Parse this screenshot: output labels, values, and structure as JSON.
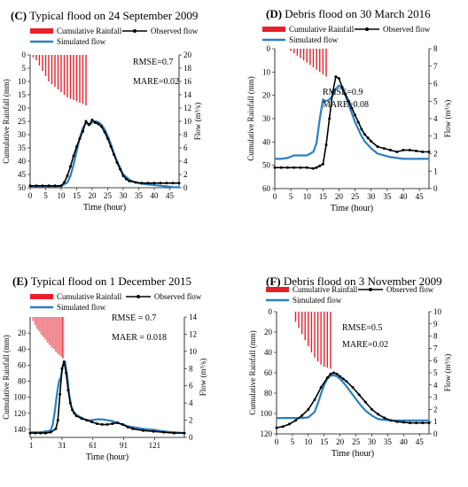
{
  "colors": {
    "rain": "#e8202a",
    "observed": "#000000",
    "simulated": "#2a7fc4"
  },
  "chart_data": [
    {
      "id": "C",
      "type": "line",
      "letter": "(C)",
      "title": "Typical flood on 24 September 2009",
      "xlabel": "Time (hour)",
      "ylabel_left": "Cumulative Rainfall (mm)",
      "ylabel_right": "Flow (m³/s)",
      "xlim": [
        0,
        48
      ],
      "x_ticks": [
        0,
        5,
        10,
        15,
        20,
        25,
        30,
        35,
        40,
        45
      ],
      "y_left_lim": [
        0,
        50
      ],
      "y_left_ticks": [
        0,
        5,
        10,
        15,
        20,
        25,
        30,
        35,
        40,
        45,
        50
      ],
      "y_right_lim": [
        0,
        20
      ],
      "y_right_ticks": [
        0,
        2,
        4,
        6,
        8,
        10,
        12,
        14,
        16,
        18,
        20
      ],
      "legend": {
        "rain": "Cumulative Rainfall",
        "observed": "Observed flow",
        "simulated": "Simulated flow"
      },
      "stats": [
        "RMSE=0.7",
        "MARE=0.02"
      ],
      "rainfall": {
        "x": [
          1,
          2,
          3,
          4,
          5,
          6,
          7,
          8,
          9,
          10,
          11,
          12,
          13,
          14,
          15,
          16,
          17,
          18
        ],
        "values": [
          1,
          2,
          4,
          6,
          8,
          10,
          11,
          12,
          13,
          14,
          15,
          16,
          16.5,
          17,
          17.5,
          18,
          18.5,
          19
        ]
      },
      "observed": {
        "x": [
          0,
          2,
          4,
          6,
          8,
          10,
          11,
          12,
          13,
          14,
          15,
          16,
          17,
          18,
          19,
          20,
          21,
          22,
          23,
          24,
          25,
          26,
          27,
          28,
          29,
          30,
          31,
          32,
          34,
          36,
          38,
          40,
          42,
          44,
          46,
          48
        ],
        "y": [
          0.3,
          0.3,
          0.3,
          0.3,
          0.3,
          0.3,
          0.8,
          1.8,
          3.2,
          4.8,
          6.2,
          7.4,
          8.5,
          10.0,
          9.5,
          10.2,
          9.8,
          9.6,
          9.2,
          8.4,
          7.4,
          6.2,
          5.0,
          3.8,
          2.8,
          1.8,
          1.3,
          1.0,
          0.8,
          0.7,
          0.7,
          0.7,
          0.7,
          0.7,
          0.7,
          0.7
        ]
      },
      "simulated": {
        "x": [
          0,
          2,
          4,
          6,
          8,
          10,
          12,
          13,
          14,
          15,
          16,
          17,
          18,
          19,
          20,
          21,
          22,
          23,
          24,
          25,
          26,
          27,
          28,
          29,
          30,
          32,
          34,
          36,
          38,
          40,
          42,
          44,
          46,
          48
        ],
        "y": [
          0.2,
          0.2,
          0.2,
          0.2,
          0.2,
          0.25,
          0.8,
          1.8,
          3.5,
          5.5,
          7.5,
          9.0,
          9.8,
          9.4,
          9.8,
          10.0,
          9.9,
          9.5,
          8.8,
          7.8,
          6.6,
          5.2,
          4.0,
          3.0,
          2.0,
          1.2,
          0.8,
          0.6,
          0.5,
          0.4,
          0.3,
          0.2,
          0.1,
          0.05
        ]
      }
    },
    {
      "id": "D",
      "type": "line",
      "letter": "(D)",
      "title": "Debris flood on 30 March 2016",
      "xlabel": "Time (hour)",
      "ylabel_left": "Cumulative Rainfall (mm)",
      "ylabel_right": "Flow (m³/s)",
      "xlim": [
        0,
        48
      ],
      "x_ticks": [
        0,
        5,
        10,
        15,
        20,
        25,
        30,
        35,
        40,
        45
      ],
      "y_left_lim": [
        0,
        60
      ],
      "y_left_ticks": [
        0,
        10,
        20,
        30,
        40,
        50,
        60
      ],
      "y_right_lim": [
        0,
        8
      ],
      "y_right_ticks": [
        0,
        1,
        2,
        3,
        4,
        5,
        6,
        7,
        8
      ],
      "legend": {
        "rain": "Cumulative Rainfall",
        "observed": "Observed flow",
        "simulated": "Simulated flow"
      },
      "stats": [
        "RMSE=0.9",
        "MARE=0.08"
      ],
      "rainfall": {
        "x": [
          5,
          6,
          7,
          8,
          9,
          10,
          11,
          12,
          13,
          14,
          15,
          16
        ],
        "values": [
          1,
          2,
          3,
          4,
          5,
          6,
          7,
          8,
          9,
          10,
          11,
          12
        ]
      },
      "observed": {
        "x": [
          0,
          2,
          4,
          6,
          8,
          10,
          12,
          13,
          14,
          15,
          16,
          17,
          18,
          19,
          20,
          21,
          22,
          23,
          24,
          25,
          26,
          27,
          28,
          29,
          30,
          32,
          34,
          36,
          38,
          40,
          42,
          44,
          46,
          48
        ],
        "y": [
          1.2,
          1.2,
          1.2,
          1.2,
          1.2,
          1.2,
          1.15,
          1.2,
          1.3,
          1.4,
          2.5,
          4.0,
          5.5,
          6.4,
          6.3,
          5.8,
          5.4,
          5.0,
          4.6,
          4.2,
          3.8,
          3.4,
          3.1,
          2.9,
          2.7,
          2.4,
          2.3,
          2.2,
          2.1,
          2.2,
          2.2,
          2.15,
          2.1,
          2.1
        ]
      },
      "simulated": {
        "x": [
          0,
          2,
          4,
          6,
          8,
          10,
          12,
          13,
          14,
          15,
          16,
          17,
          18,
          19,
          20,
          21,
          22,
          23,
          24,
          25,
          26,
          27,
          28,
          29,
          30,
          32,
          34,
          36,
          38,
          40,
          42,
          44,
          46,
          48
        ],
        "y": [
          1.7,
          1.7,
          1.75,
          1.9,
          1.9,
          1.9,
          2.1,
          2.6,
          4.0,
          5.1,
          5.0,
          5.1,
          5.3,
          5.7,
          5.9,
          5.7,
          5.3,
          4.8,
          4.3,
          3.8,
          3.4,
          3.0,
          2.7,
          2.5,
          2.3,
          2.0,
          1.9,
          1.8,
          1.75,
          1.7,
          1.7,
          1.7,
          1.7,
          1.7
        ]
      }
    },
    {
      "id": "E",
      "type": "line",
      "letter": "(E)",
      "title": "Typical flood on 1 December 2015",
      "xlabel": "Time (hour)",
      "ylabel_left": "Cumulative Rainfall (mm)",
      "ylabel_right": "Flow (m³/s)",
      "xlim": [
        0,
        150
      ],
      "x_ticks": [
        1,
        31,
        61,
        91,
        121
      ],
      "y_left_lim": [
        0,
        150
      ],
      "y_left_ticks": [
        20,
        40,
        60,
        80,
        100,
        120,
        140
      ],
      "y_right_lim": [
        0,
        14
      ],
      "y_right_ticks": [
        0,
        2,
        4,
        6,
        8,
        10,
        12,
        14
      ],
      "legend": {
        "rain": "Cumulative Rainfall",
        "observed": "Observed flow",
        "simulated": "Simulated flow"
      },
      "stats": [
        "RMSE = 0.7",
        "MAER = 0.018"
      ],
      "rainfall": {
        "x": [
          3,
          5,
          7,
          9,
          11,
          13,
          15,
          17,
          19,
          21,
          23,
          25,
          27,
          29,
          31,
          32
        ],
        "values": [
          5,
          10,
          15,
          18,
          22,
          25,
          28,
          32,
          35,
          38,
          40,
          43,
          46,
          48,
          50,
          52
        ]
      },
      "observed": {
        "x": [
          0,
          5,
          10,
          15,
          20,
          25,
          27,
          29,
          31,
          33,
          35,
          37,
          39,
          41,
          43,
          45,
          50,
          55,
          60,
          65,
          70,
          75,
          80,
          85,
          90,
          95,
          100,
          110,
          120,
          130,
          140,
          150
        ],
        "y": [
          0.5,
          0.5,
          0.5,
          0.5,
          0.6,
          1.0,
          2.0,
          5.0,
          8.0,
          8.8,
          7.5,
          5.5,
          4.0,
          3.2,
          2.8,
          2.5,
          2.2,
          2.0,
          1.8,
          1.6,
          1.5,
          1.5,
          1.6,
          1.7,
          1.5,
          1.2,
          1.0,
          0.8,
          0.7,
          0.6,
          0.5,
          0.5
        ]
      },
      "simulated": {
        "x": [
          0,
          5,
          10,
          15,
          20,
          22,
          24,
          26,
          28,
          30,
          32,
          34,
          36,
          38,
          40,
          42,
          45,
          50,
          55,
          60,
          65,
          70,
          75,
          80,
          85,
          90,
          95,
          100,
          110,
          120,
          130,
          140,
          150
        ],
        "y": [
          0.6,
          0.6,
          0.6,
          0.7,
          0.8,
          1.5,
          3.0,
          5.0,
          6.5,
          7.0,
          8.5,
          8.8,
          7.2,
          5.0,
          3.6,
          3.0,
          2.6,
          2.3,
          2.0,
          2.0,
          2.1,
          2.1,
          2.0,
          1.9,
          1.7,
          1.5,
          1.3,
          1.2,
          1.0,
          0.9,
          0.7,
          0.6,
          0.5
        ]
      }
    },
    {
      "id": "F",
      "type": "line",
      "letter": "(F)",
      "title": "Debris flood on 3 November 2009",
      "xlabel": "Time (hour)",
      "ylabel_left": "Cumulative Rainfall (mm)",
      "ylabel_right": "Flow (m³/s)",
      "xlim": [
        0,
        48
      ],
      "x_ticks": [
        0,
        5,
        10,
        15,
        20,
        25,
        30,
        35,
        40,
        45
      ],
      "y_left_lim": [
        0,
        120
      ],
      "y_left_ticks": [
        0,
        20,
        40,
        60,
        80,
        100,
        120
      ],
      "y_right_lim": [
        0,
        10
      ],
      "y_right_ticks": [
        0,
        1,
        2,
        3,
        4,
        5,
        6,
        7,
        8,
        9,
        10
      ],
      "legend": {
        "rain": "Cumulative Rainfall",
        "observed": "Observed flow",
        "simulated": "Simulated flow"
      },
      "stats": [
        "RMSE=0.5",
        "MARE=0.02"
      ],
      "rainfall": {
        "x": [
          6,
          7,
          8,
          9,
          10,
          11,
          12,
          13,
          14,
          15,
          16,
          17
        ],
        "values": [
          10,
          16,
          22,
          28,
          34,
          40,
          45,
          49,
          52,
          54,
          55,
          56
        ]
      },
      "observed": {
        "x": [
          0,
          2,
          4,
          6,
          8,
          10,
          12,
          14,
          16,
          17,
          18,
          19,
          20,
          21,
          22,
          24,
          26,
          28,
          30,
          32,
          34,
          36,
          38,
          40,
          42,
          44,
          46,
          48
        ],
        "y": [
          0.5,
          0.6,
          0.8,
          1.1,
          1.5,
          2.0,
          2.8,
          3.8,
          4.6,
          4.9,
          5.0,
          4.9,
          4.7,
          4.5,
          4.3,
          3.8,
          3.2,
          2.6,
          2.0,
          1.6,
          1.3,
          1.1,
          1.0,
          0.95,
          0.9,
          0.9,
          0.9,
          0.9
        ]
      },
      "simulated": {
        "x": [
          0,
          2,
          4,
          6,
          8,
          10,
          12,
          13,
          14,
          15,
          16,
          17,
          18,
          19,
          20,
          21,
          22,
          24,
          26,
          28,
          30,
          32,
          34,
          36,
          38,
          40,
          42,
          44,
          46,
          48
        ],
        "y": [
          1.3,
          1.3,
          1.3,
          1.3,
          1.3,
          1.35,
          1.8,
          2.5,
          3.3,
          4.0,
          4.5,
          4.75,
          4.8,
          4.7,
          4.5,
          4.2,
          3.9,
          3.2,
          2.5,
          1.9,
          1.5,
          1.2,
          1.15,
          1.1,
          1.1,
          1.1,
          1.1,
          1.1,
          1.1,
          1.1
        ]
      }
    }
  ]
}
